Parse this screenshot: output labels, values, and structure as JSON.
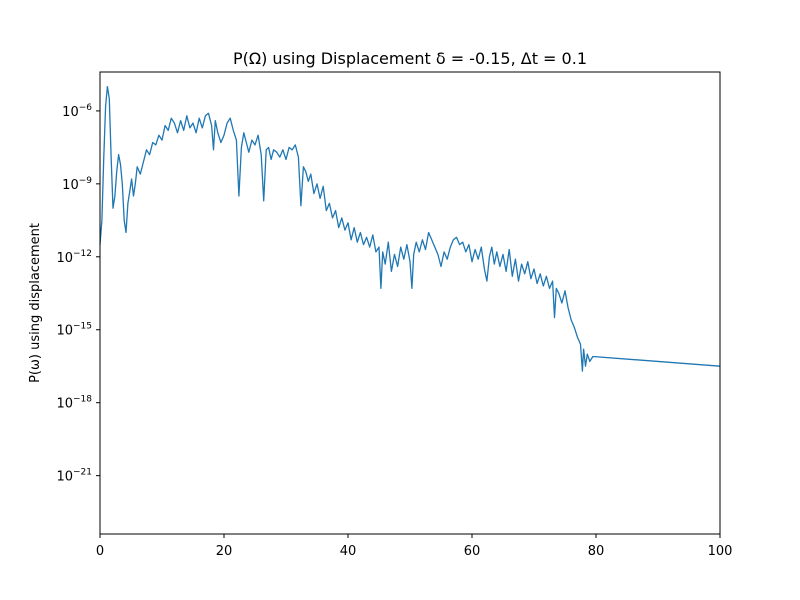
{
  "chart_data": {
    "type": "line",
    "title": "P(Ω) using Displacement δ = -0.15, Δt = 0.1",
    "xlabel": "",
    "ylabel": "P(ω) using displacement",
    "xlim": [
      0,
      100
    ],
    "ylim_log10": [
      -23.4,
      -4.4
    ],
    "y_scale": "log",
    "grid": false,
    "x_ticks": [
      0,
      20,
      40,
      60,
      80,
      100
    ],
    "y_ticks_exponent": [
      -6,
      -9,
      -12,
      -15,
      -18,
      -21
    ],
    "y_ticks_base": "10",
    "line_color": "#1f77b4",
    "series": [
      {
        "points_log10": [
          [
            0.0,
            -11.5
          ],
          [
            0.3,
            -10.5
          ],
          [
            0.6,
            -8.0
          ],
          [
            0.9,
            -5.8
          ],
          [
            1.2,
            -5.0
          ],
          [
            1.5,
            -5.5
          ],
          [
            1.8,
            -8.0
          ],
          [
            2.1,
            -10.0
          ],
          [
            2.4,
            -9.5
          ],
          [
            2.7,
            -8.5
          ],
          [
            3.0,
            -7.8
          ],
          [
            3.3,
            -8.2
          ],
          [
            3.6,
            -9.0
          ],
          [
            3.9,
            -10.5
          ],
          [
            4.2,
            -11.0
          ],
          [
            4.5,
            -9.8
          ],
          [
            4.8,
            -9.3
          ],
          [
            5.1,
            -8.8
          ],
          [
            5.4,
            -9.5
          ],
          [
            5.7,
            -9.0
          ],
          [
            6.0,
            -8.3
          ],
          [
            6.5,
            -8.6
          ],
          [
            7.0,
            -8.1
          ],
          [
            7.5,
            -7.6
          ],
          [
            8.0,
            -7.8
          ],
          [
            8.5,
            -7.3
          ],
          [
            9.0,
            -7.4
          ],
          [
            9.5,
            -7.0
          ],
          [
            10.0,
            -7.2
          ],
          [
            10.5,
            -6.6
          ],
          [
            11.0,
            -6.8
          ],
          [
            11.5,
            -6.3
          ],
          [
            12.0,
            -6.5
          ],
          [
            12.5,
            -6.9
          ],
          [
            13.0,
            -6.4
          ],
          [
            13.5,
            -6.8
          ],
          [
            14.0,
            -6.2
          ],
          [
            14.5,
            -6.7
          ],
          [
            15.0,
            -6.5
          ],
          [
            15.5,
            -6.9
          ],
          [
            16.0,
            -6.3
          ],
          [
            16.5,
            -6.7
          ],
          [
            17.0,
            -6.2
          ],
          [
            17.5,
            -6.1
          ],
          [
            18.0,
            -6.6
          ],
          [
            18.3,
            -7.6
          ],
          [
            18.6,
            -6.4
          ],
          [
            19.0,
            -6.9
          ],
          [
            19.5,
            -7.3
          ],
          [
            20.0,
            -7.0
          ],
          [
            20.5,
            -6.5
          ],
          [
            21.0,
            -6.3
          ],
          [
            21.5,
            -6.8
          ],
          [
            22.0,
            -7.2
          ],
          [
            22.4,
            -9.5
          ],
          [
            22.8,
            -7.5
          ],
          [
            23.2,
            -6.9
          ],
          [
            23.6,
            -7.3
          ],
          [
            24.0,
            -7.7
          ],
          [
            24.5,
            -7.2
          ],
          [
            25.0,
            -7.4
          ],
          [
            25.5,
            -7.0
          ],
          [
            26.0,
            -7.8
          ],
          [
            26.4,
            -9.7
          ],
          [
            26.8,
            -7.6
          ],
          [
            27.2,
            -7.5
          ],
          [
            27.6,
            -8.0
          ],
          [
            28.0,
            -7.6
          ],
          [
            28.5,
            -7.7
          ],
          [
            29.0,
            -7.9
          ],
          [
            29.5,
            -7.6
          ],
          [
            30.0,
            -8.0
          ],
          [
            30.5,
            -7.5
          ],
          [
            31.0,
            -7.6
          ],
          [
            31.5,
            -7.4
          ],
          [
            32.0,
            -7.9
          ],
          [
            32.4,
            -9.9
          ],
          [
            32.8,
            -8.3
          ],
          [
            33.2,
            -8.5
          ],
          [
            33.6,
            -8.9
          ],
          [
            34.0,
            -8.6
          ],
          [
            34.5,
            -9.4
          ],
          [
            35.0,
            -9.0
          ],
          [
            35.5,
            -9.6
          ],
          [
            36.0,
            -9.1
          ],
          [
            36.5,
            -10.1
          ],
          [
            37.0,
            -9.8
          ],
          [
            37.5,
            -10.4
          ],
          [
            38.0,
            -10.1
          ],
          [
            38.5,
            -10.8
          ],
          [
            39.0,
            -10.4
          ],
          [
            39.5,
            -10.9
          ],
          [
            40.0,
            -10.6
          ],
          [
            40.5,
            -11.3
          ],
          [
            41.0,
            -10.8
          ],
          [
            41.5,
            -11.4
          ],
          [
            42.0,
            -11.0
          ],
          [
            42.5,
            -11.5
          ],
          [
            43.0,
            -11.2
          ],
          [
            43.5,
            -11.6
          ],
          [
            44.0,
            -11.1
          ],
          [
            44.5,
            -11.8
          ],
          [
            45.0,
            -11.6
          ],
          [
            45.3,
            -13.3
          ],
          [
            45.6,
            -11.8
          ],
          [
            46.0,
            -12.3
          ],
          [
            46.5,
            -11.4
          ],
          [
            47.0,
            -12.6
          ],
          [
            47.5,
            -11.9
          ],
          [
            48.0,
            -12.4
          ],
          [
            48.5,
            -11.6
          ],
          [
            49.0,
            -12.1
          ],
          [
            49.5,
            -11.5
          ],
          [
            50.0,
            -12.2
          ],
          [
            50.3,
            -13.3
          ],
          [
            50.6,
            -11.9
          ],
          [
            51.0,
            -11.4
          ],
          [
            51.5,
            -11.8
          ],
          [
            52.0,
            -11.3
          ],
          [
            52.5,
            -11.7
          ],
          [
            53.0,
            -11.0
          ],
          [
            53.5,
            -11.3
          ],
          [
            54.0,
            -11.6
          ],
          [
            54.5,
            -11.9
          ],
          [
            55.0,
            -12.4
          ],
          [
            55.5,
            -11.8
          ],
          [
            56.0,
            -12.1
          ],
          [
            56.5,
            -11.6
          ],
          [
            57.0,
            -11.3
          ],
          [
            57.5,
            -11.2
          ],
          [
            58.0,
            -11.5
          ],
          [
            58.5,
            -11.4
          ],
          [
            59.0,
            -11.8
          ],
          [
            59.5,
            -11.5
          ],
          [
            60.0,
            -12.2
          ],
          [
            60.5,
            -11.7
          ],
          [
            61.0,
            -12.1
          ],
          [
            61.5,
            -11.6
          ],
          [
            62.0,
            -12.5
          ],
          [
            62.4,
            -13.0
          ],
          [
            62.8,
            -12.0
          ],
          [
            63.2,
            -11.6
          ],
          [
            63.6,
            -12.3
          ],
          [
            64.0,
            -11.8
          ],
          [
            64.5,
            -12.4
          ],
          [
            65.0,
            -11.9
          ],
          [
            65.5,
            -12.6
          ],
          [
            66.0,
            -11.7
          ],
          [
            66.5,
            -12.8
          ],
          [
            67.0,
            -12.1
          ],
          [
            67.5,
            -13.0
          ],
          [
            68.0,
            -12.3
          ],
          [
            68.5,
            -12.7
          ],
          [
            69.0,
            -12.2
          ],
          [
            69.5,
            -12.9
          ],
          [
            70.0,
            -12.5
          ],
          [
            70.5,
            -13.1
          ],
          [
            71.0,
            -12.7
          ],
          [
            71.5,
            -13.2
          ],
          [
            72.0,
            -12.8
          ],
          [
            72.5,
            -13.3
          ],
          [
            73.0,
            -13.0
          ],
          [
            73.3,
            -14.5
          ],
          [
            73.6,
            -13.3
          ],
          [
            74.0,
            -13.5
          ],
          [
            74.5,
            -13.9
          ],
          [
            75.0,
            -13.4
          ],
          [
            75.5,
            -14.1
          ],
          [
            76.0,
            -14.6
          ],
          [
            76.5,
            -14.9
          ],
          [
            77.0,
            -15.3
          ],
          [
            77.5,
            -15.6
          ],
          [
            77.8,
            -16.7
          ],
          [
            78.0,
            -15.8
          ],
          [
            78.3,
            -16.5
          ],
          [
            78.6,
            -16.0
          ],
          [
            79.0,
            -16.3
          ],
          [
            79.5,
            -16.1
          ],
          [
            100.0,
            -16.5
          ]
        ]
      }
    ]
  }
}
